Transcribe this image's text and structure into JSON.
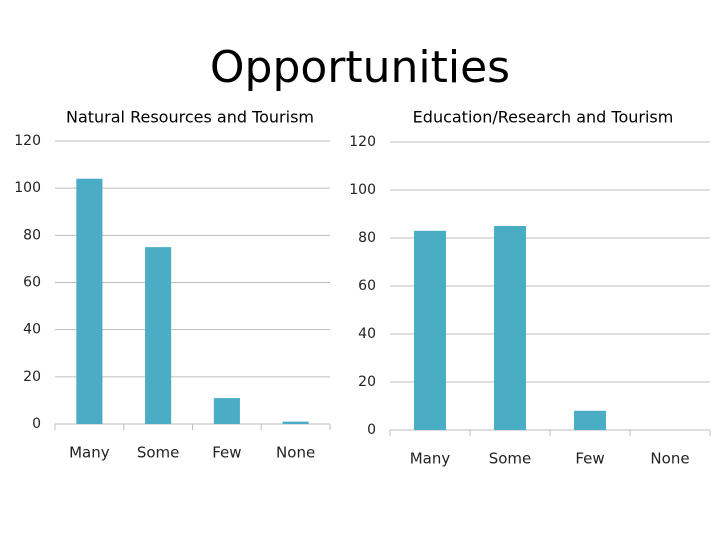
{
  "title": "Opportunities",
  "chart_data": [
    {
      "type": "bar",
      "title": "Natural Resources and Tourism",
      "categories": [
        "Many",
        "Some",
        "Few",
        "None"
      ],
      "values": [
        104,
        75,
        11,
        1
      ],
      "color": "#4bacc6",
      "ylim": [
        0,
        120
      ],
      "yticks": [
        0,
        20,
        40,
        60,
        80,
        100,
        120
      ],
      "grid": true
    },
    {
      "type": "bar",
      "title": "Education/Research and Tourism",
      "categories": [
        "Many",
        "Some",
        "Few",
        "None"
      ],
      "values": [
        83,
        85,
        8,
        0
      ],
      "color": "#4bacc6",
      "ylim": [
        0,
        120
      ],
      "yticks": [
        0,
        20,
        40,
        60,
        80,
        100,
        120
      ],
      "grid": true
    }
  ]
}
